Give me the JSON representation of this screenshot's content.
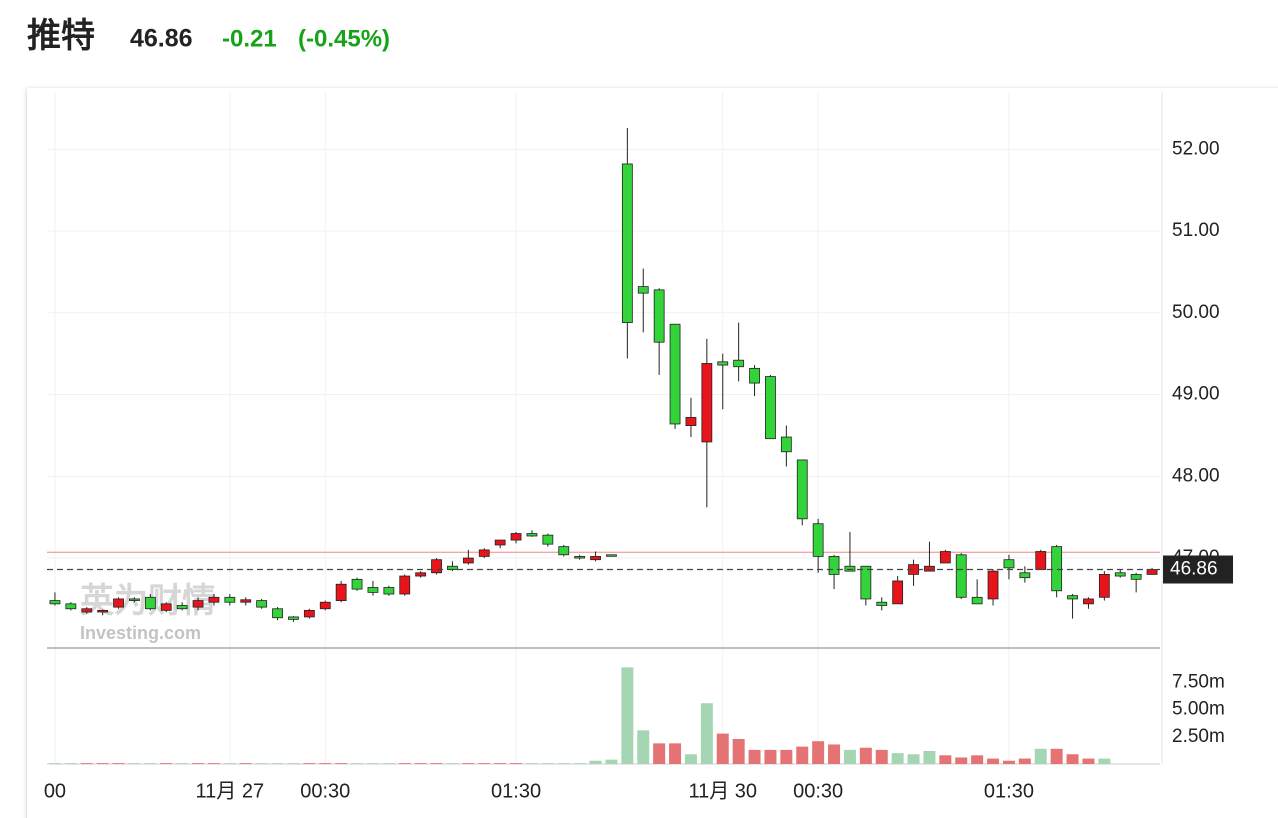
{
  "header": {
    "name": "推特",
    "price": 46.86,
    "change": -0.21,
    "change_percent": {
      "value": -0.45,
      "label": "(-0.45%)"
    }
  },
  "chart_data": {
    "type": "candlestick",
    "watermark": [
      "英为财情",
      "Investing.com"
    ],
    "categories": [
      "00",
      null,
      null,
      null,
      null,
      null,
      null,
      null,
      null,
      null,
      null,
      "11月 27",
      null,
      null,
      null,
      null,
      null,
      "00:30",
      null,
      null,
      null,
      null,
      null,
      null,
      null,
      null,
      null,
      null,
      null,
      "01:30",
      null,
      null,
      null,
      null,
      null,
      null,
      null,
      null,
      null,
      null,
      null,
      null,
      "11月 30",
      null,
      null,
      null,
      null,
      null,
      "00:30",
      null,
      null,
      null,
      null,
      null,
      null,
      null,
      null,
      null,
      null,
      null,
      "01:30",
      null,
      null,
      null,
      null,
      null,
      null,
      null,
      null,
      null
    ],
    "open": [
      46.48,
      46.44,
      46.34,
      46.34,
      46.4,
      46.5,
      46.52,
      46.36,
      46.42,
      46.4,
      46.46,
      46.52,
      46.46,
      46.48,
      46.38,
      46.28,
      46.28,
      46.38,
      46.48,
      46.74,
      46.64,
      46.64,
      46.56,
      46.78,
      46.82,
      46.9,
      46.94,
      47.02,
      47.16,
      47.22,
      47.3,
      47.28,
      47.14,
      47.02,
      46.98,
      47.04,
      51.82,
      50.32,
      50.28,
      49.86,
      48.62,
      48.42,
      49.4,
      49.42,
      49.32,
      49.22,
      48.48,
      48.2,
      47.42,
      47.02,
      46.9,
      46.9,
      46.46,
      46.44,
      46.8,
      46.84,
      46.94,
      47.04,
      46.52,
      46.5,
      46.98,
      46.82,
      46.86,
      47.14,
      46.54,
      46.44,
      46.52,
      46.82,
      46.8,
      46.8
    ],
    "high": [
      46.58,
      46.46,
      46.4,
      46.37,
      46.52,
      46.52,
      46.56,
      46.46,
      46.46,
      46.52,
      46.56,
      46.56,
      46.52,
      46.5,
      46.4,
      46.29,
      46.38,
      46.48,
      46.72,
      46.76,
      46.72,
      46.66,
      46.8,
      46.84,
      47.0,
      46.96,
      47.1,
      47.12,
      47.22,
      47.32,
      47.34,
      47.3,
      47.16,
      47.04,
      47.08,
      47.04,
      52.26,
      50.54,
      50.3,
      49.86,
      48.96,
      49.68,
      49.5,
      49.88,
      49.36,
      49.24,
      48.62,
      48.2,
      47.48,
      47.04,
      47.32,
      46.9,
      46.52,
      46.78,
      46.98,
      47.2,
      47.1,
      47.06,
      46.74,
      46.86,
      47.04,
      46.9,
      47.1,
      47.16,
      46.56,
      46.52,
      46.84,
      46.86,
      46.82,
      46.88
    ],
    "low": [
      46.42,
      46.36,
      46.32,
      46.3,
      46.38,
      46.46,
      46.36,
      46.34,
      46.36,
      46.36,
      46.42,
      46.42,
      46.42,
      46.38,
      46.24,
      46.22,
      46.26,
      46.36,
      46.46,
      46.6,
      46.54,
      46.54,
      46.54,
      46.76,
      46.8,
      46.84,
      46.92,
      47.0,
      47.12,
      47.18,
      47.26,
      47.14,
      47.02,
      46.98,
      46.96,
      47.02,
      49.44,
      49.76,
      49.24,
      48.58,
      48.48,
      47.62,
      48.82,
      49.16,
      48.98,
      48.46,
      48.12,
      47.4,
      46.82,
      46.62,
      46.84,
      46.42,
      46.36,
      46.44,
      46.66,
      46.84,
      46.94,
      46.5,
      46.44,
      46.42,
      46.74,
      46.7,
      46.86,
      46.52,
      46.26,
      46.38,
      46.48,
      46.76,
      46.58,
      46.8
    ],
    "close": [
      46.44,
      46.38,
      46.38,
      46.36,
      46.5,
      46.48,
      46.38,
      46.44,
      46.38,
      46.48,
      46.52,
      46.46,
      46.49,
      46.4,
      46.27,
      46.25,
      46.36,
      46.46,
      46.68,
      46.62,
      46.58,
      46.56,
      46.78,
      46.82,
      46.98,
      46.86,
      47.0,
      47.1,
      47.22,
      47.3,
      47.27,
      47.17,
      47.04,
      47.0,
      47.02,
      47.03,
      49.88,
      50.24,
      49.64,
      48.64,
      48.72,
      49.38,
      49.36,
      49.34,
      49.14,
      48.46,
      48.3,
      47.48,
      47.02,
      46.8,
      46.84,
      46.5,
      46.42,
      46.72,
      46.92,
      46.9,
      47.08,
      46.52,
      46.44,
      46.84,
      46.88,
      46.76,
      47.08,
      46.6,
      46.5,
      46.5,
      46.8,
      46.78,
      46.74,
      46.86
    ],
    "up_color": "#e8141c",
    "down_color": "#33d33a",
    "volume": [
      0.08,
      0.08,
      0.08,
      0.08,
      0.08,
      0.08,
      0.08,
      0.08,
      0.08,
      0.08,
      0.08,
      0.08,
      0.08,
      0.08,
      0.08,
      0.08,
      0.08,
      0.08,
      0.08,
      0.08,
      0.08,
      0.08,
      0.08,
      0.08,
      0.08,
      0.08,
      0.08,
      0.08,
      0.08,
      0.08,
      0.08,
      0.08,
      0.08,
      0.08,
      0.3,
      0.4,
      8.9,
      3.1,
      1.9,
      1.9,
      0.9,
      5.6,
      2.8,
      2.3,
      1.3,
      1.3,
      1.3,
      1.6,
      2.1,
      1.8,
      1.3,
      1.5,
      1.3,
      1.0,
      0.9,
      1.2,
      0.8,
      0.6,
      0.8,
      0.5,
      0.3,
      0.5,
      1.4,
      1.4,
      0.9,
      0.5,
      0.5,
      0,
      0,
      0
    ],
    "volume_colors": [
      "#a5d6b4",
      "#a5d6b4",
      "#e57373",
      "#e57373",
      "#e57373",
      "#a5d6b4",
      "#a5d6b4",
      "#e57373",
      "#a5d6b4",
      "#e57373",
      "#e57373",
      "#a5d6b4",
      "#e57373",
      "#a5d6b4",
      "#a5d6b4",
      "#a5d6b4",
      "#e57373",
      "#e57373",
      "#e57373",
      "#a5d6b4",
      "#a5d6b4",
      "#a5d6b4",
      "#e57373",
      "#e57373",
      "#e57373",
      "#a5d6b4",
      "#e57373",
      "#e57373",
      "#e57373",
      "#e57373",
      "#a5d6b4",
      "#a5d6b4",
      "#a5d6b4",
      "#a5d6b4",
      "#a5d6b4",
      "#a5d6b4",
      "#a5d6b4",
      "#a5d6b4",
      "#e57373",
      "#e57373",
      "#a5d6b4",
      "#a5d6b4",
      "#e57373",
      "#e57373",
      "#e57373",
      "#e57373",
      "#e57373",
      "#e57373",
      "#e57373",
      "#e57373",
      "#a5d6b4",
      "#e57373",
      "#e57373",
      "#a5d6b4",
      "#a5d6b4",
      "#a5d6b4",
      "#e57373",
      "#e57373",
      "#e57373",
      "#e57373",
      "#e57373",
      "#e57373",
      "#a5d6b4",
      "#e57373",
      "#e57373",
      "#e57373",
      "#a5d6b4",
      "#a5d6b4",
      "#a5d6b4",
      "#a5d6b4"
    ],
    "ylim": [
      45.9,
      52.7
    ],
    "yticks": [
      {
        "value": 47,
        "label": "47.00"
      },
      {
        "value": 48,
        "label": "48.00"
      },
      {
        "value": 49,
        "label": "49.00"
      },
      {
        "value": 50,
        "label": "50.00"
      },
      {
        "value": 51,
        "label": "51.00"
      },
      {
        "value": 52,
        "label": "52.00"
      }
    ],
    "volume_ylim": [
      0,
      10.5
    ],
    "volume_yticks": [
      {
        "value": 2.5,
        "label": "2.50m"
      },
      {
        "value": 5,
        "label": "5.00m"
      },
      {
        "value": 7.5,
        "label": "7.50m"
      }
    ],
    "reference_line": 47.07,
    "reference_color": "#f4a6a6",
    "last_price": 46.86,
    "grid": true
  }
}
